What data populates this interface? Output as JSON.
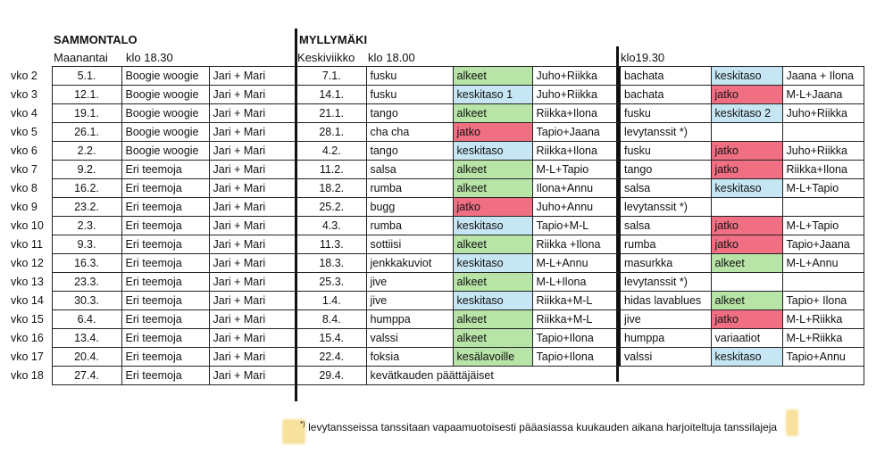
{
  "headers": {
    "sammontalo": "SAMMONTALO",
    "maanantai": "Maanantai",
    "klo1830": "klo 18.30",
    "myllymaki": "MYLLYMÄKI",
    "keskiviikko": "Keskiviikko",
    "klo1800": "klo 18.00",
    "klo1930": "klo19.30"
  },
  "rows": [
    {
      "week": "vko 2",
      "mon_date": "5.1.",
      "mon_theme": "Boogie woogie",
      "mon_teachers": "Jari + Mari",
      "wed_date": "7.1.",
      "dance1": "fusku",
      "level1": "alkeet",
      "level1_color": "green",
      "teachers1": "Juho+Riikka",
      "dance2": "bachata",
      "level2": "keskitaso",
      "level2_color": "blue",
      "teachers2": "Jaana + Ilona"
    },
    {
      "week": "vko 3",
      "mon_date": "12.1.",
      "mon_theme": "Boogie woogie",
      "mon_teachers": "Jari + Mari",
      "wed_date": "14.1.",
      "dance1": "fusku",
      "level1": "keskitaso 1",
      "level1_color": "blue",
      "teachers1": "Juho+Riikka",
      "dance2": " bachata",
      "level2": "jatko",
      "level2_color": "red",
      "teachers2": "M-L+Jaana"
    },
    {
      "week": "vko 4",
      "mon_date": "19.1.",
      "mon_theme": "Boogie woogie",
      "mon_teachers": "Jari + Mari",
      "wed_date": "21.1.",
      "dance1": "tango",
      "level1": "alkeet",
      "level1_color": "green",
      "teachers1": "Riikka+Ilona",
      "dance2": "fusku",
      "level2": "keskitaso 2",
      "level2_color": "blue",
      "teachers2": "Juho+Riikka"
    },
    {
      "week": "vko 5",
      "mon_date": "26.1.",
      "mon_theme": "Boogie woogie",
      "mon_teachers": "Jari + Mari",
      "wed_date": "28.1.",
      "dance1": "cha cha",
      "level1": "jatko",
      "level1_color": "red",
      "teachers1": "Tapio+Jaana",
      "dance2": "levytanssit *)",
      "level2": "",
      "level2_color": "none",
      "teachers2": ""
    },
    {
      "week": "vko 6",
      "mon_date": "2.2.",
      "mon_theme": "Boogie woogie",
      "mon_teachers": "Jari + Mari",
      "wed_date": "4.2.",
      "dance1": "tango",
      "level1": "keskitaso",
      "level1_color": "blue",
      "teachers1": "Riikka+Ilona",
      "dance2": "fusku",
      "level2": "jatko",
      "level2_color": "red",
      "teachers2": "Juho+Riikka"
    },
    {
      "week": "vko 7",
      "mon_date": "9.2.",
      "mon_theme": "Eri teemoja",
      "mon_teachers": "Jari + Mari",
      "wed_date": "11.2.",
      "dance1": "salsa",
      "level1": "alkeet",
      "level1_color": "green",
      "teachers1": "M-L+Tapio",
      "dance2": "tango",
      "level2": "jatko",
      "level2_color": "red",
      "teachers2": "Riikka+Ilona"
    },
    {
      "week": "vko 8",
      "mon_date": "16.2.",
      "mon_theme": "Eri teemoja",
      "mon_teachers": "Jari + Mari",
      "wed_date": "18.2.",
      "dance1": "rumba",
      "level1": "alkeet",
      "level1_color": "green",
      "teachers1": "Ilona+Annu",
      "dance2": "salsa",
      "level2": "keskitaso",
      "level2_color": "blue",
      "teachers2": "M-L+Tapio"
    },
    {
      "week": "vko 9",
      "mon_date": "23.2.",
      "mon_theme": "Eri teemoja",
      "mon_teachers": "Jari + Mari",
      "wed_date": "25.2.",
      "dance1": "bugg",
      "level1": "jatko",
      "level1_color": "red",
      "teachers1": "Juho+Annu",
      "dance2": "levytanssit *)",
      "level2": "",
      "level2_color": "none",
      "teachers2": ""
    },
    {
      "week": "vko 10",
      "mon_date": "2.3.",
      "mon_theme": "Eri teemoja",
      "mon_teachers": "Jari + Mari",
      "wed_date": "4.3.",
      "dance1": "rumba",
      "level1": "keskitaso",
      "level1_color": "blue",
      "teachers1": "Tapio+M-L",
      "dance2": "salsa",
      "level2": "jatko",
      "level2_color": "red",
      "teachers2": "M-L+Tapio"
    },
    {
      "week": "vko 11",
      "mon_date": "9.3.",
      "mon_theme": "Eri teemoja",
      "mon_teachers": "Jari + Mari",
      "wed_date": "11.3.",
      "dance1": "sottiisi",
      "level1": "alkeet",
      "level1_color": "green",
      "teachers1": "Riikka +Ilona",
      "dance2": "rumba",
      "level2": "jatko",
      "level2_color": "red",
      "teachers2": "Tapio+Jaana"
    },
    {
      "week": "vko 12",
      "mon_date": "16.3.",
      "mon_theme": "Eri teemoja",
      "mon_teachers": "Jari + Mari",
      "wed_date": "18.3.",
      "dance1": "jenkkakuviot",
      "level1": "keskitaso",
      "level1_color": "blue",
      "teachers1": "M-L+Annu",
      "dance2": "masurkka",
      "level2": "alkeet",
      "level2_color": "green",
      "teachers2": "M-L+Annu"
    },
    {
      "week": "vko 13",
      "mon_date": "23.3.",
      "mon_theme": "Eri teemoja",
      "mon_teachers": "Jari + Mari",
      "wed_date": "25.3.",
      "dance1": "jive",
      "level1": "alkeet",
      "level1_color": "green",
      "teachers1": "M-L+Ilona",
      "dance2": "levytanssit *)",
      "level2": "",
      "level2_color": "none",
      "teachers2": ""
    },
    {
      "week": "vko 14",
      "mon_date": "30.3.",
      "mon_theme": "Eri teemoja",
      "mon_teachers": "Jari + Mari",
      "wed_date": "1.4.",
      "dance1": "jive",
      "level1": "keskitaso",
      "level1_color": "blue",
      "teachers1": "Riikka+M-L",
      "dance2": "hidas lavablues",
      "level2": "alkeet",
      "level2_color": "green",
      "teachers2": "Tapio+ Ilona"
    },
    {
      "week": "vko 15",
      "mon_date": "6.4.",
      "mon_theme": "Eri teemoja",
      "mon_teachers": "Jari + Mari",
      "wed_date": "8.4.",
      "dance1": "humppa",
      "level1": "alkeet",
      "level1_color": "green",
      "teachers1": "Riikka+M-L",
      "dance2": "jive",
      "level2": "jatko",
      "level2_color": "red",
      "teachers2": "M-L+Riikka"
    },
    {
      "week": "vko 16",
      "mon_date": "13.4.",
      "mon_theme": "Eri teemoja",
      "mon_teachers": "Jari + Mari",
      "wed_date": "15.4.",
      "dance1": "valssi",
      "level1": "alkeet",
      "level1_color": "green",
      "teachers1": "Tapio+Ilona",
      "dance2": "humppa",
      "level2": "variaatiot",
      "level2_color": "none",
      "teachers2": "M-L+Riikka"
    },
    {
      "week": "vko 17",
      "mon_date": "20.4.",
      "mon_theme": "Eri teemoja",
      "mon_teachers": "Jari + Mari",
      "wed_date": "22.4.",
      "dance1": "foksia",
      "level1": "kesälavoille",
      "level1_color": "green",
      "teachers1": "Tapio+Ilona",
      "dance2": "valssi",
      "level2": "keskitaso",
      "level2_color": "blue",
      "teachers2": "Tapio+Annu"
    },
    {
      "week": "vko 18",
      "mon_date": "27.4.",
      "mon_theme": "Eri teemoja",
      "mon_teachers": "Jari + Mari",
      "wed_date": "29.4.",
      "closing": "kevätkauden päättäjäiset"
    }
  ],
  "footnote": {
    "marker": "*)",
    "text": " levytansseissa tanssitaan vapaamuotoisesti pääasiassa kuukauden aikana harjoiteltuja tanssilajeja"
  },
  "colors": {
    "green": "#b8e4a7",
    "blue": "#c7e6f4",
    "red": "#f06f83",
    "highlighter": "#f6d77b"
  }
}
